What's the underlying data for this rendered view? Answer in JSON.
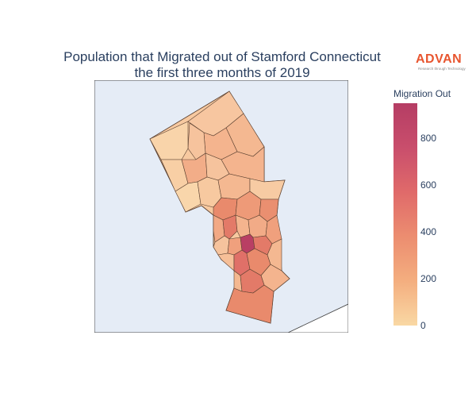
{
  "title": {
    "line1": "Population that Migrated out of Stamford Connecticut",
    "line2": "the first three months of 2019"
  },
  "logo": {
    "word": "ADVAN",
    "tagline": "Research through Technology",
    "color": "#e8552f"
  },
  "colorbar": {
    "title": "Migration Out",
    "min": 0,
    "max": 950,
    "ticks": [
      0,
      200,
      400,
      600,
      800
    ],
    "colors": [
      "#f9d8a4",
      "#f4ae7f",
      "#ec8d70",
      "#e06a6a",
      "#c94e6c",
      "#b53d64"
    ]
  },
  "map": {
    "background_color": "#e5ecf6",
    "region": "Stamford Connecticut",
    "hotspot_value": 950,
    "typical_value_range": [
      0,
      550
    ]
  }
}
